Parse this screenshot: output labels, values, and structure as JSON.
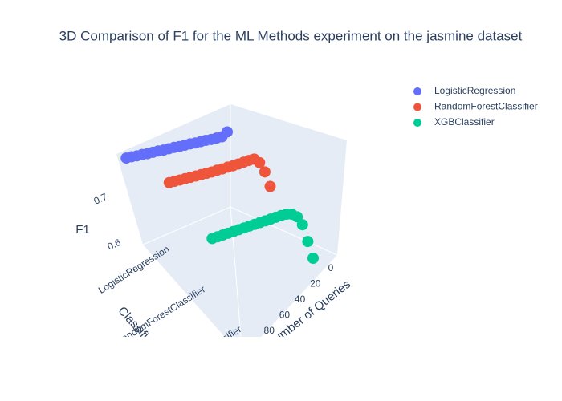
{
  "chart_data": {
    "type": "scatter3d",
    "title": "3D Comparison of F1 for the ML Methods experiment on the jasmine dataset",
    "xlabel": "Number of Queries",
    "ylabel": "Classifier",
    "zlabel": "F1",
    "x": [
      0,
      5,
      10,
      15,
      20,
      25,
      30,
      35,
      40,
      45,
      50,
      55,
      60,
      65,
      70,
      75,
      80,
      85,
      90,
      95
    ],
    "xlim": [
      0,
      99
    ],
    "xticks": [
      0,
      20,
      40,
      60,
      80
    ],
    "categories": [
      "LogisticRegression",
      "RandomForestClassifier",
      "XGBClassifier"
    ],
    "zlim": [
      0.55,
      0.79
    ],
    "zticks": [
      0.6,
      0.7
    ],
    "legend": "top-right",
    "series": [
      {
        "name": "LogisticRegression",
        "color": "#636efa",
        "values": [
          0.781,
          0.772,
          0.771,
          0.77,
          0.77,
          0.769,
          0.768,
          0.768,
          0.767,
          0.766,
          0.766,
          0.765,
          0.764,
          0.764,
          0.763,
          0.762,
          0.762,
          0.761,
          0.761,
          0.76
        ]
      },
      {
        "name": "RandomForestClassifier",
        "color": "#EF553B",
        "values": [
          0.7,
          0.735,
          0.758,
          0.768,
          0.767,
          0.765,
          0.763,
          0.761,
          0.76,
          0.758,
          0.757,
          0.755,
          0.754,
          0.753,
          0.752,
          0.751,
          0.75,
          0.749,
          0.748,
          0.747
        ]
      },
      {
        "name": "XGBClassifier",
        "color": "#00cc96",
        "values": [
          0.58,
          0.62,
          0.66,
          0.68,
          0.688,
          0.69,
          0.689,
          0.687,
          0.685,
          0.683,
          0.681,
          0.679,
          0.677,
          0.675,
          0.673,
          0.671,
          0.669,
          0.667,
          0.665,
          0.663
        ]
      }
    ]
  }
}
